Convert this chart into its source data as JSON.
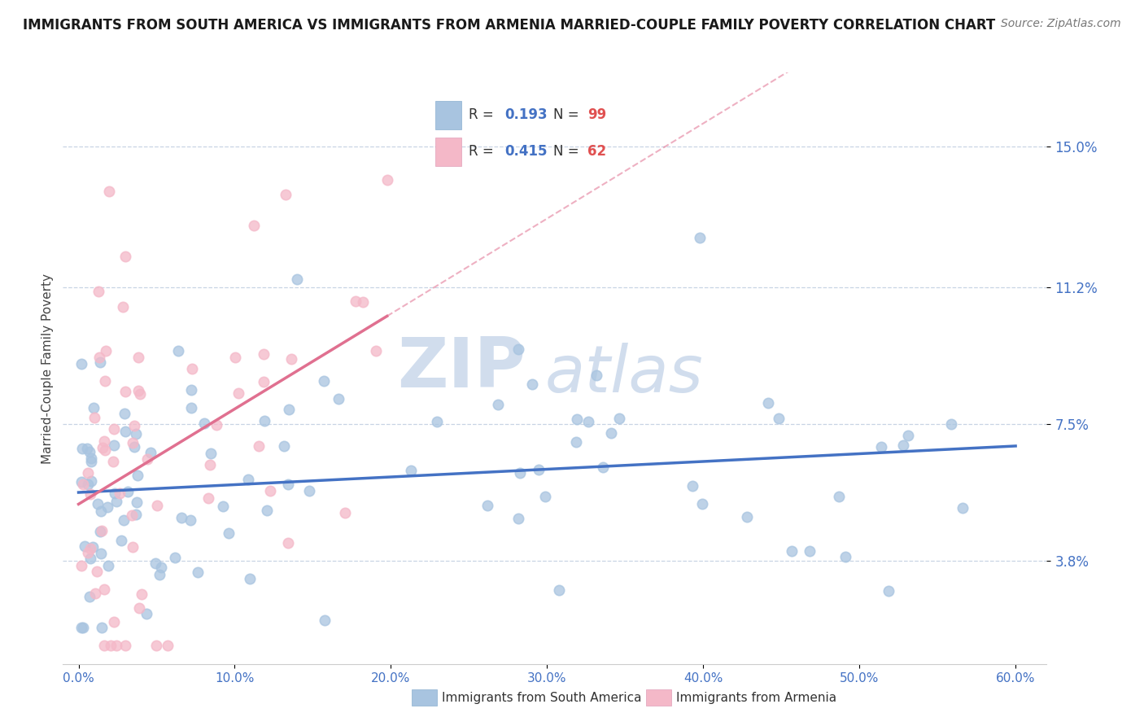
{
  "title": "IMMIGRANTS FROM SOUTH AMERICA VS IMMIGRANTS FROM ARMENIA MARRIED-COUPLE FAMILY POVERTY CORRELATION CHART",
  "source": "Source: ZipAtlas.com",
  "ylabel": "Married-Couple Family Poverty",
  "xlim": [
    -1,
    62
  ],
  "ylim": [
    1.0,
    17.0
  ],
  "yticks": [
    3.8,
    7.5,
    11.2,
    15.0
  ],
  "ytick_labels": [
    "3.8%",
    "7.5%",
    "11.2%",
    "15.0%"
  ],
  "xticks": [
    0.0,
    10.0,
    20.0,
    30.0,
    40.0,
    50.0,
    60.0
  ],
  "xtick_labels": [
    "0.0%",
    "10.0%",
    "20.0%",
    "30.0%",
    "40.0%",
    "50.0%",
    "60.0%"
  ],
  "legend_R_blue": "0.193",
  "legend_N_blue": "99",
  "legend_R_pink": "0.415",
  "legend_N_pink": "62",
  "legend_label_blue": "Immigrants from South America",
  "legend_label_pink": "Immigrants from Armenia",
  "blue_color": "#a8c4e0",
  "pink_color": "#f4b8c8",
  "blue_line_color": "#4472c4",
  "pink_line_color": "#e07090",
  "R_value_color": "#4472c4",
  "N_value_color": "#e05050",
  "title_fontsize": 12,
  "watermark_zip": "ZIP",
  "watermark_atlas": "atlas",
  "watermark_color": "#ccdaec",
  "background_color": "#ffffff",
  "grid_color": "#c8d4e4",
  "blue_scatter_seed": 42,
  "pink_scatter_seed": 123
}
